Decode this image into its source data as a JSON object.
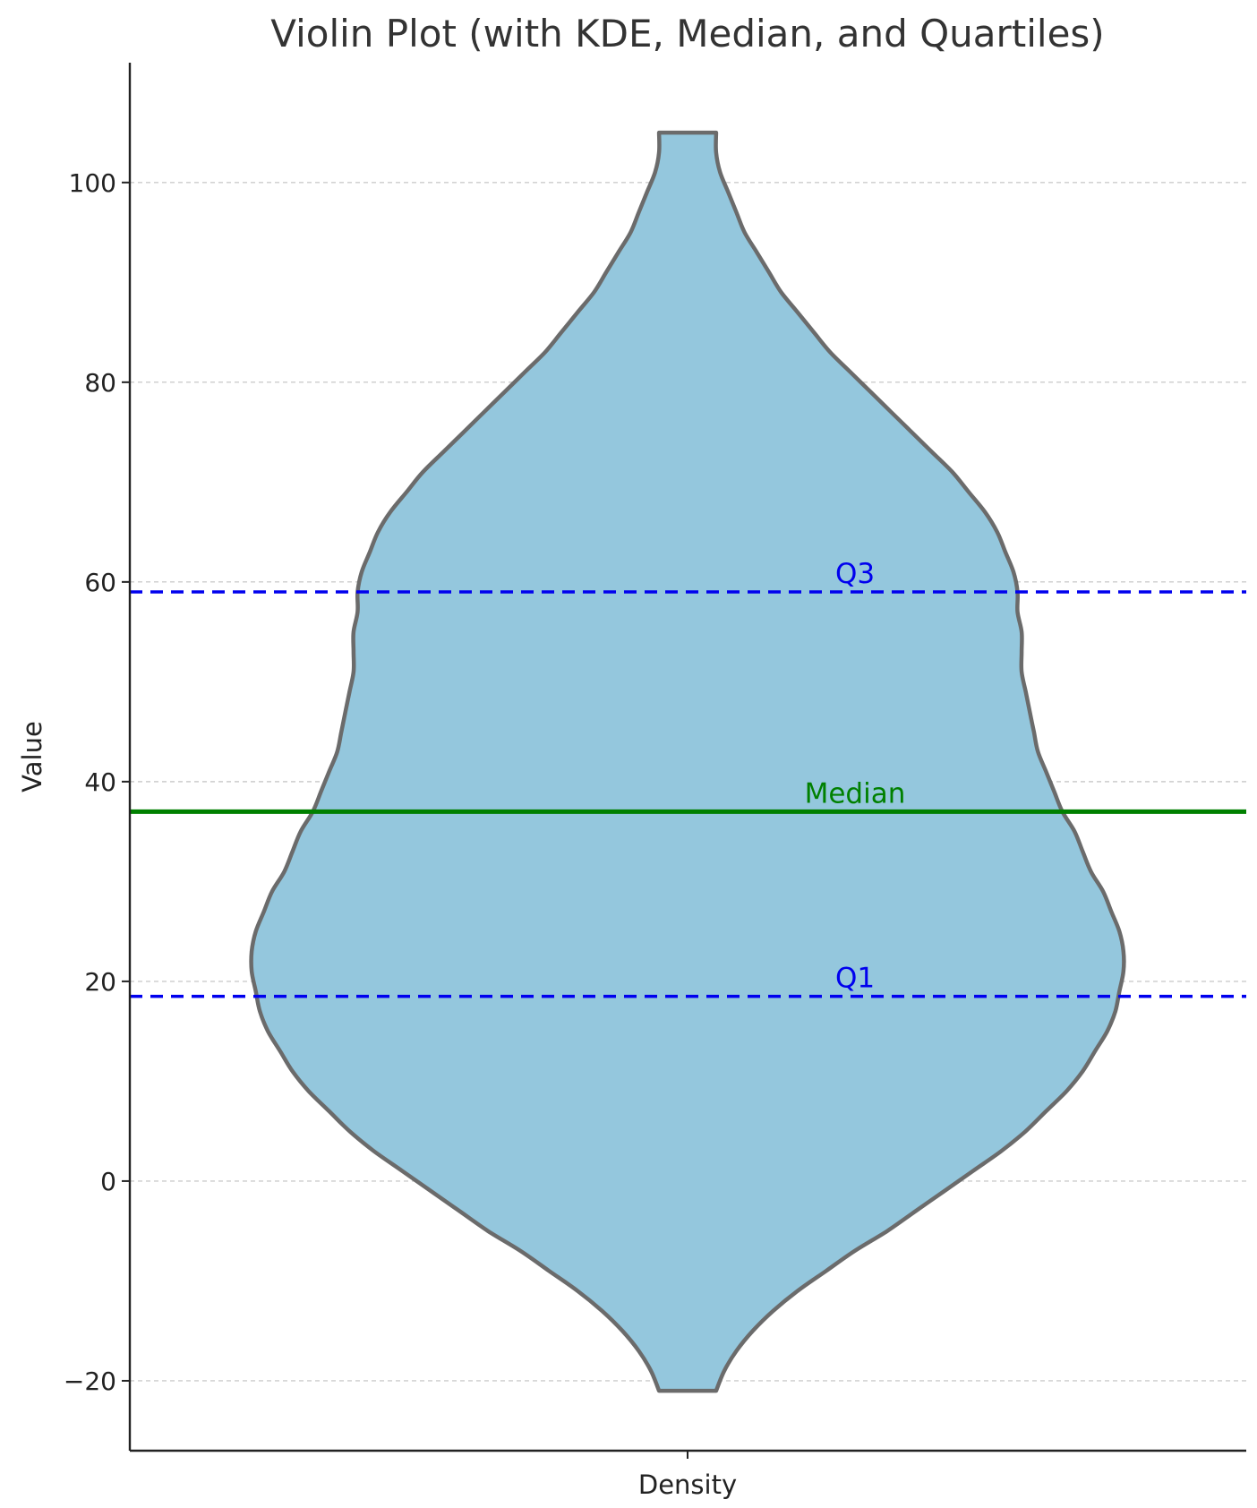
{
  "chart_data": {
    "type": "violin",
    "title": "Violin Plot (with KDE, Median, and Quartiles)",
    "xlabel": "",
    "ylabel": "Value",
    "categories": [
      "Density"
    ],
    "ylim": [
      -27,
      112
    ],
    "yticks": [
      -20,
      0,
      20,
      40,
      60,
      80,
      100
    ],
    "ytick_labels": [
      "−20",
      "0",
      "20",
      "40",
      "60",
      "80",
      "100"
    ],
    "grid": "horizontal, dashed",
    "colors": {
      "violin_fill": "#94c7dd",
      "violin_edge": "#6b6b6b",
      "median": "#008000",
      "quartile": "#0000ee",
      "grid": "#cccccc",
      "axis": "#222222"
    },
    "violin": {
      "range": [
        -21,
        105
      ],
      "profile": [
        [
          -21,
          0.07
        ],
        [
          -19,
          0.09
        ],
        [
          -17,
          0.12
        ],
        [
          -15,
          0.16
        ],
        [
          -13,
          0.21
        ],
        [
          -11,
          0.27
        ],
        [
          -9,
          0.34
        ],
        [
          -7,
          0.41
        ],
        [
          -5,
          0.49
        ],
        [
          -3,
          0.56
        ],
        [
          -1,
          0.63
        ],
        [
          1,
          0.7
        ],
        [
          3,
          0.77
        ],
        [
          5,
          0.83
        ],
        [
          7,
          0.88
        ],
        [
          9,
          0.93
        ],
        [
          11,
          0.97
        ],
        [
          13,
          1.0
        ],
        [
          15,
          1.03
        ],
        [
          17,
          1.05
        ],
        [
          19,
          1.06
        ],
        [
          21,
          1.07
        ],
        [
          23,
          1.07
        ],
        [
          25,
          1.06
        ],
        [
          27,
          1.04
        ],
        [
          29,
          1.02
        ],
        [
          31,
          0.99
        ],
        [
          33,
          0.97
        ],
        [
          35,
          0.95
        ],
        [
          37,
          0.92
        ],
        [
          39,
          0.9
        ],
        [
          41,
          0.88
        ],
        [
          43,
          0.86
        ],
        [
          45,
          0.85
        ],
        [
          47,
          0.84
        ],
        [
          49,
          0.83
        ],
        [
          51,
          0.82
        ],
        [
          53,
          0.82
        ],
        [
          55,
          0.82
        ],
        [
          57,
          0.81
        ],
        [
          59,
          0.81
        ],
        [
          61,
          0.8
        ],
        [
          63,
          0.78
        ],
        [
          65,
          0.76
        ],
        [
          67,
          0.73
        ],
        [
          69,
          0.69
        ],
        [
          71,
          0.65
        ],
        [
          73,
          0.6
        ],
        [
          75,
          0.55
        ],
        [
          77,
          0.5
        ],
        [
          79,
          0.45
        ],
        [
          81,
          0.4
        ],
        [
          83,
          0.35
        ],
        [
          85,
          0.31
        ],
        [
          87,
          0.27
        ],
        [
          89,
          0.23
        ],
        [
          91,
          0.2
        ],
        [
          93,
          0.17
        ],
        [
          95,
          0.14
        ],
        [
          97,
          0.12
        ],
        [
          99,
          0.1
        ],
        [
          101,
          0.08
        ],
        [
          103,
          0.07
        ],
        [
          105,
          0.07
        ]
      ]
    },
    "lines": [
      {
        "name": "Median",
        "label": "Median",
        "value": 37,
        "style": "solid",
        "color": "#008000"
      },
      {
        "name": "Q1",
        "label": "Q1",
        "value": 18.5,
        "style": "dashed",
        "color": "#0000ee"
      },
      {
        "name": "Q3",
        "label": "Q3",
        "value": 59,
        "style": "dashed",
        "color": "#0000ee"
      }
    ],
    "legend": "none"
  }
}
